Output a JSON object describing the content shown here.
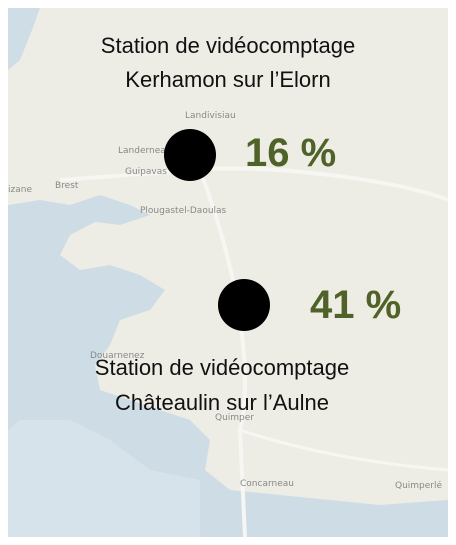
{
  "stations": [
    {
      "title": "Station de vidéocomptage",
      "place": "Kerhamon sur l’Elorn",
      "share": "16 %"
    },
    {
      "title": "Station de vidéocomptage",
      "place": "Châteaulin sur l’Aulne",
      "share": "41 %"
    }
  ],
  "places": [
    "Landivisiau",
    "Landerneau",
    "Guipavas",
    "Brest",
    "Plougastel-Daoulas",
    "Douarnenez",
    "Quimper",
    "Concarneau",
    "Quimperlé",
    "izane"
  ]
}
